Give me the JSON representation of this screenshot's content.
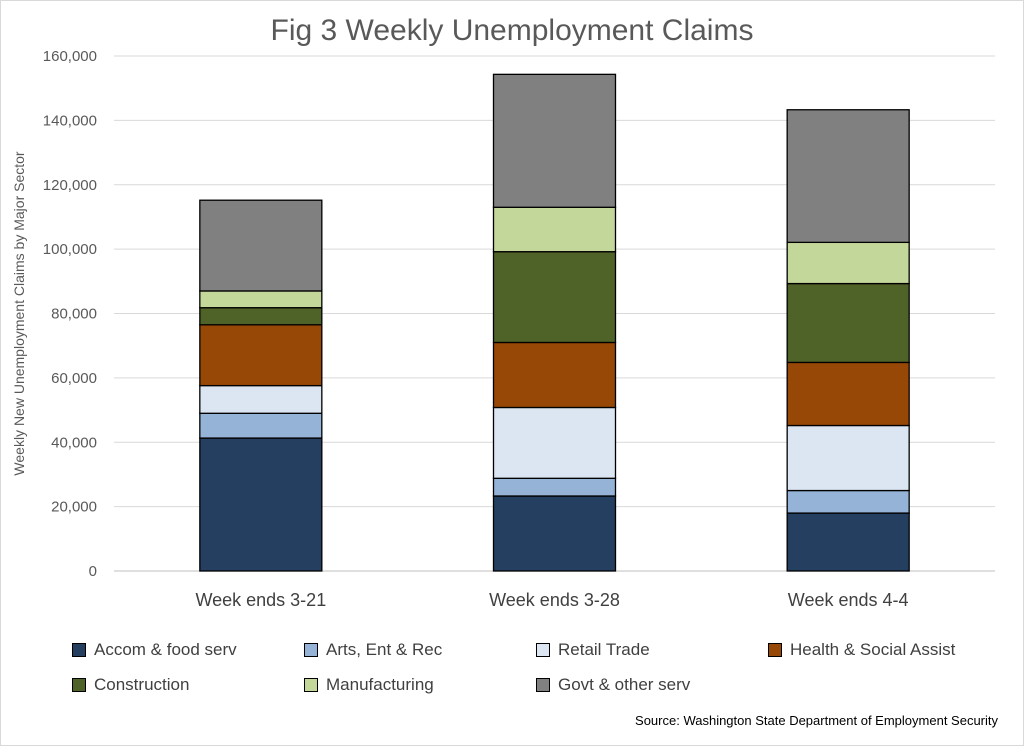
{
  "chart_data": {
    "type": "bar",
    "stacked": true,
    "title": "Fig 3 Weekly Unemployment Claims",
    "ylabel": "Weekly New Unemployment Claims by Major Sector",
    "xlabel": "",
    "ylim": [
      0,
      160000
    ],
    "yticks": [
      "0",
      "20,000",
      "40,000",
      "60,000",
      "80,000",
      "100,000",
      "120,000",
      "140,000",
      "160,000"
    ],
    "categories": [
      "Week ends 3-21",
      "Week ends 3-28",
      "Week ends 4-4"
    ],
    "grid": true,
    "legend_position": "bottom",
    "series": [
      {
        "name": "Accom & food serv",
        "color": "#243f60",
        "values": [
          41300,
          23300,
          18000
        ]
      },
      {
        "name": "Arts, Ent & Rec",
        "color": "#95b3d7",
        "values": [
          7700,
          5500,
          7000
        ]
      },
      {
        "name": "Retail Trade",
        "color": "#dce6f2",
        "values": [
          8600,
          22000,
          20200
        ]
      },
      {
        "name": "Health & Social Assist",
        "color": "#974706",
        "values": [
          18900,
          20200,
          19600
        ]
      },
      {
        "name": "Construction",
        "color": "#4f6228",
        "values": [
          5300,
          28200,
          24500
        ]
      },
      {
        "name": "Manufacturing",
        "color": "#c4d79b",
        "values": [
          5200,
          13800,
          12800
        ]
      },
      {
        "name": "Govt & other serv",
        "color": "#808080",
        "values": [
          28200,
          41300,
          41200
        ]
      }
    ],
    "source": "Source: Washington State Department of Employment Security"
  }
}
